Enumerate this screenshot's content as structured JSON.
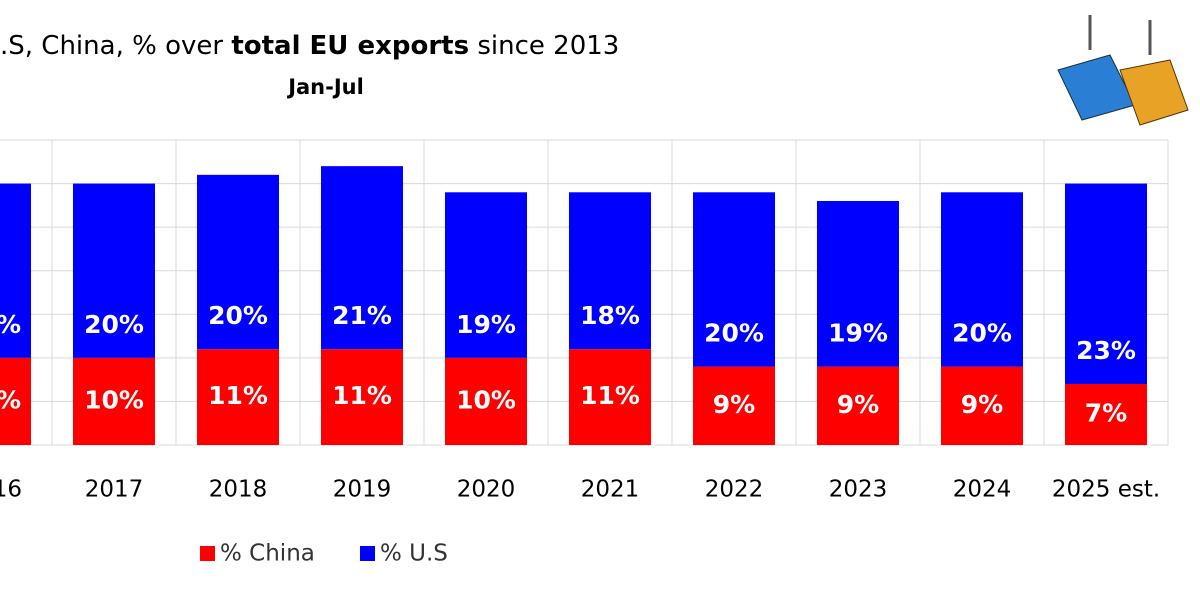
{
  "chart_data": {
    "type": "stacked_bar",
    "title": [
      ".S, China, % over ",
      "total EU exports",
      " since 2013"
    ],
    "subtitle": "Jan-Jul",
    "categories": [
      "16",
      "2017",
      "2018",
      "2019",
      "2020",
      "2021",
      "2022",
      "2023",
      "2024",
      "2025 est."
    ],
    "series": [
      {
        "name": "% China",
        "color": "#ff0000",
        "values": [
          10,
          10,
          11,
          11,
          10,
          11,
          9,
          9,
          9,
          7
        ],
        "value_labels": [
          "%",
          "10%",
          "11%",
          "11%",
          "10%",
          "11%",
          "9%",
          "9%",
          "9%",
          "7%"
        ]
      },
      {
        "name": "% U.S",
        "color": "#0000ff",
        "values": [
          20,
          20,
          20,
          21,
          19,
          18,
          20,
          19,
          20,
          23
        ],
        "value_labels": [
          "%",
          "20%",
          "20%",
          "21%",
          "19%",
          "18%",
          "20%",
          "19%",
          "20%",
          "23%"
        ]
      }
    ],
    "ylim": [
      0,
      35
    ],
    "yticks": [
      0,
      5,
      10,
      15,
      20,
      25,
      30,
      35
    ],
    "grid": true
  }
}
